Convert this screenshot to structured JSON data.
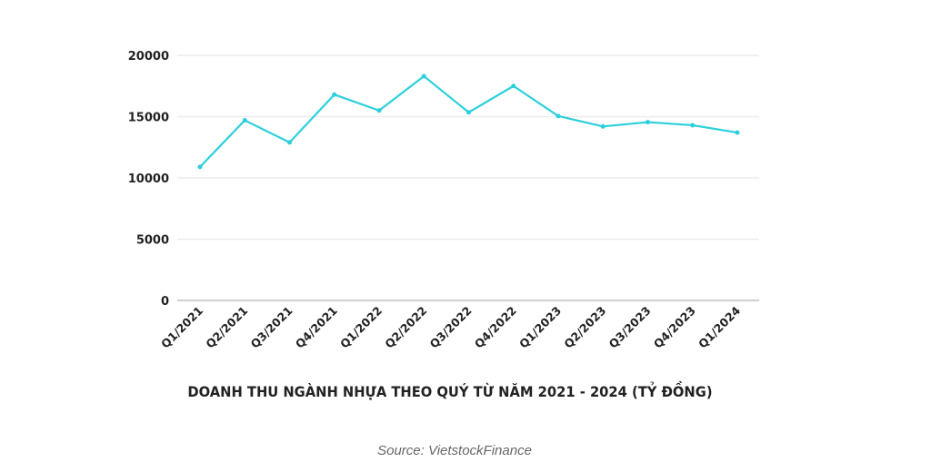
{
  "chart_data": {
    "type": "line",
    "title": "DOANH THU NGÀNH NHỰA THEO QUÝ TỪ NĂM 2021 - 2024 (TỶ ĐỒNG)",
    "xlabel": "",
    "ylabel": "",
    "categories": [
      "Q1/2021",
      "Q2/2021",
      "Q3/2021",
      "Q4/2021",
      "Q1/2022",
      "Q2/2022",
      "Q3/2022",
      "Q4/2022",
      "Q1/2023",
      "Q2/2023",
      "Q3/2023",
      "Q4/2023",
      "Q1/2024"
    ],
    "series": [
      {
        "name": "Doanh thu",
        "values": [
          10900,
          14700,
          12900,
          16800,
          15500,
          18300,
          15350,
          17500,
          15050,
          14200,
          14550,
          14300,
          13700
        ],
        "color": "#2ccfdc"
      }
    ],
    "ylim": [
      0,
      20000
    ],
    "yticks": [
      0,
      5000,
      10000,
      15000,
      20000
    ],
    "grid": true,
    "legend": "none"
  },
  "source": "Source: VietstockFinance"
}
